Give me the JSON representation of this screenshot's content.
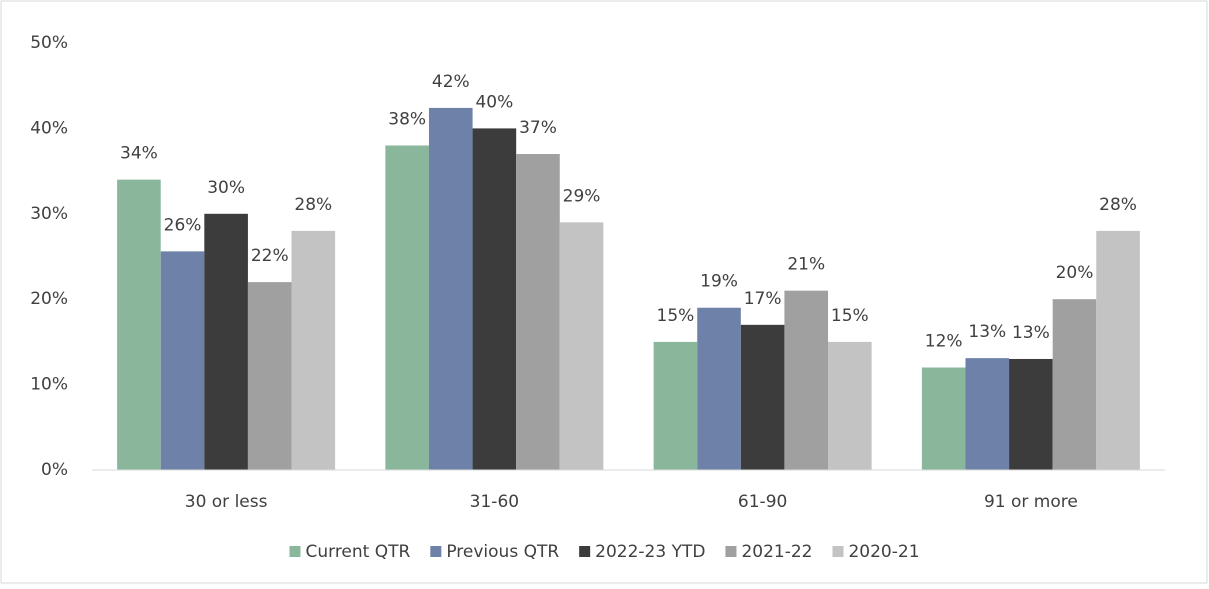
{
  "chart_data": {
    "type": "bar",
    "categories": [
      "30 or less",
      "31-60",
      "61-90",
      "91 or more"
    ],
    "series": [
      {
        "name": "Current QTR",
        "color": "#8ab69c",
        "values": [
          34,
          38,
          15,
          12
        ],
        "value_labels": [
          "34%",
          "38%",
          "15%",
          "12%"
        ]
      },
      {
        "name": "Previous QTR",
        "color": "#6e82a9",
        "values": [
          25.6,
          42.4,
          19,
          13.1
        ],
        "value_labels": [
          "26%",
          "42%",
          "19%",
          "13%"
        ]
      },
      {
        "name": "2022-23 YTD",
        "color": "#3c3c3c",
        "values": [
          30,
          40,
          17,
          13
        ],
        "value_labels": [
          "30%",
          "40%",
          "17%",
          "13%"
        ]
      },
      {
        "name": "2021-22",
        "color": "#a0a0a0",
        "values": [
          22,
          37,
          21,
          20
        ],
        "value_labels": [
          "22%",
          "37%",
          "21%",
          "20%"
        ]
      },
      {
        "name": "2020-21",
        "color": "#c3c3c3",
        "values": [
          28,
          29,
          15,
          28
        ],
        "value_labels": [
          "28%",
          "29%",
          "15%",
          "28%"
        ]
      }
    ],
    "ylim": [
      0,
      50
    ],
    "yticks": [
      {
        "value": 0,
        "label": "0%"
      },
      {
        "value": 10,
        "label": "10%"
      },
      {
        "value": 20,
        "label": "20%"
      },
      {
        "value": 30,
        "label": "30%"
      },
      {
        "value": 40,
        "label": "40%"
      },
      {
        "value": 50,
        "label": "50%"
      }
    ],
    "grid": false,
    "legend": "bottom"
  }
}
